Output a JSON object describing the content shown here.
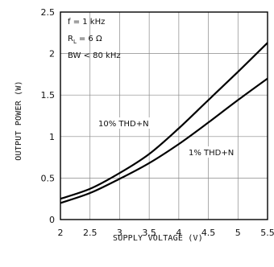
{
  "chart_data": {
    "type": "line",
    "xlabel": "SUPPLY VOLTAGE (V)",
    "ylabel": "OUTPUT POWER (W)",
    "xlim": [
      2,
      5.5
    ],
    "ylim": [
      0,
      2.5
    ],
    "xticks": [
      "2",
      "2.5",
      "3",
      "3.5",
      "4",
      "4.5",
      "5",
      "5.5"
    ],
    "yticks": [
      "0",
      "0.5",
      "1",
      "1.5",
      "2",
      "2.5"
    ],
    "grid": true,
    "conditions": [
      "f = 1 kHz",
      "R",
      "L",
      "= 6 Ω",
      "BW < 80 kHz"
    ],
    "series": [
      {
        "name": "10% THD+N",
        "x": [
          2,
          2.5,
          3,
          3.5,
          4,
          4.5,
          5,
          5.5
        ],
        "values": [
          0.25,
          0.37,
          0.56,
          0.79,
          1.1,
          1.44,
          1.78,
          2.13
        ]
      },
      {
        "name": "1% THD+N",
        "x": [
          2,
          2.5,
          3,
          3.5,
          4,
          4.5,
          5,
          5.5
        ],
        "values": [
          0.2,
          0.32,
          0.49,
          0.68,
          0.91,
          1.17,
          1.44,
          1.7
        ]
      }
    ]
  }
}
